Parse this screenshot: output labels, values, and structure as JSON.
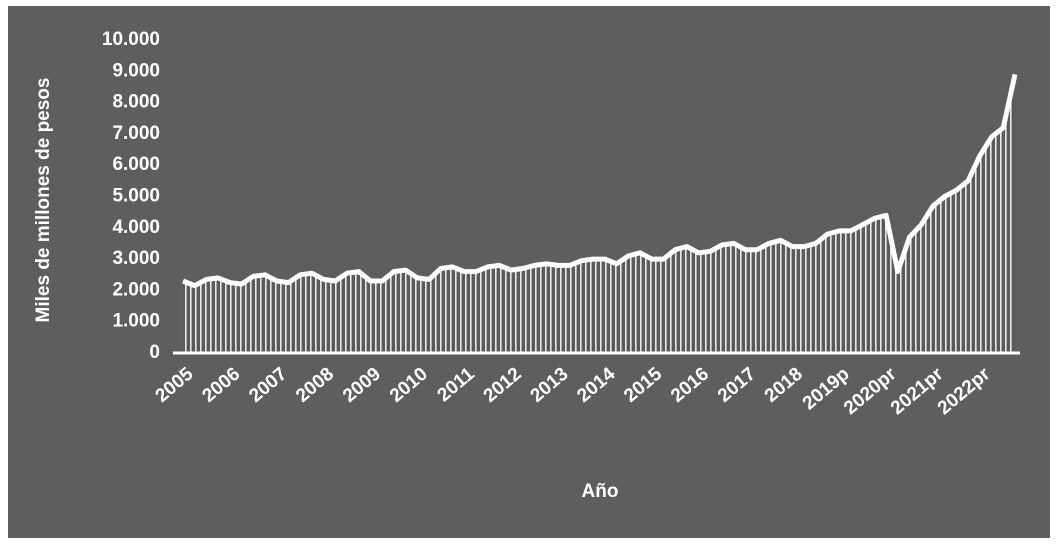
{
  "chart_data": {
    "type": "area",
    "y_axis_label": "Miles de millones de pesos",
    "x_axis_label": "Año",
    "categories": [
      "2005",
      null,
      null,
      null,
      "2006",
      null,
      null,
      null,
      "2007",
      null,
      null,
      null,
      "2008",
      null,
      null,
      null,
      "2009",
      null,
      null,
      null,
      "2010",
      null,
      null,
      null,
      "2011",
      null,
      null,
      null,
      "2012",
      null,
      null,
      null,
      "2013",
      null,
      null,
      null,
      "2014",
      null,
      null,
      null,
      "2015",
      null,
      null,
      null,
      "2016",
      null,
      null,
      null,
      "2017",
      null,
      null,
      null,
      "2018",
      null,
      null,
      null,
      "2019p",
      null,
      null,
      null,
      "2020pr",
      null,
      null,
      null,
      "2021pr",
      null,
      null,
      null,
      "2022pr",
      null,
      null,
      null
    ],
    "series": [
      {
        "color": "#ffffff",
        "values": [
          2300,
          2150,
          2350,
          2400,
          2250,
          2200,
          2450,
          2500,
          2300,
          2250,
          2500,
          2550,
          2350,
          2300,
          2550,
          2600,
          2300,
          2300,
          2600,
          2650,
          2400,
          2350,
          2700,
          2750,
          2600,
          2600,
          2750,
          2800,
          2650,
          2700,
          2800,
          2850,
          2800,
          2800,
          2950,
          3000,
          3000,
          2850,
          3100,
          3200,
          3000,
          3000,
          3300,
          3400,
          3200,
          3250,
          3450,
          3500,
          3300,
          3300,
          3500,
          3600,
          3400,
          3400,
          3500,
          3800,
          3900,
          3900,
          4100,
          4300,
          4400,
          2600,
          3700,
          4100,
          4700,
          5000,
          5200,
          5500,
          6300,
          6900,
          7200,
          8900
        ]
      }
    ],
    "ylim": [
      0,
      10000
    ],
    "yticks": [
      0,
      {
        "value": 1000,
        "label": "1.000"
      },
      {
        "value": 2000,
        "label": "2.000"
      },
      {
        "value": 3000,
        "label": "3.000"
      },
      {
        "value": 4000,
        "label": "4.000"
      },
      {
        "value": 5000,
        "label": "5.000"
      },
      {
        "value": 6000,
        "label": "6.000"
      },
      {
        "value": 7000,
        "label": "7.000"
      },
      {
        "value": 8000,
        "label": "8.000"
      },
      {
        "value": 9000,
        "label": "9.000"
      },
      {
        "value": 10000,
        "label": "10.000"
      }
    ],
    "grid": false
  }
}
